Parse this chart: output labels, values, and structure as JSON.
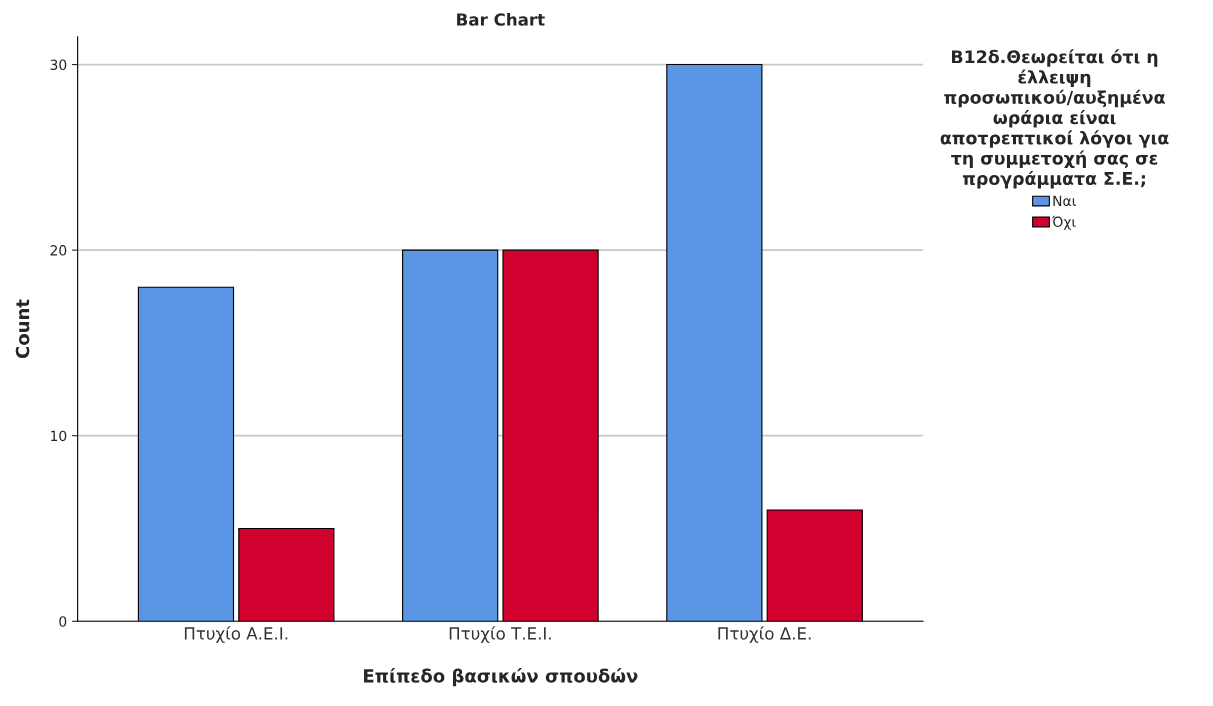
{
  "chart_data": {
    "type": "bar",
    "title": "Bar Chart",
    "xlabel": "Επίπεδο βασικών σπουδών",
    "ylabel": "Count",
    "legend_title": "B12δ.Θεωρείται ότι η\nέλλειψη\nπροσωπικού/αυξημένα\nωράρια είναι\nαποτρεπτικοί λόγοι για\nτη συμμετοχή σας σε\nπρογράμματα Σ.Ε.;",
    "categories": [
      "Πτυχίο Α.Ε.Ι.",
      "Πτυχίο Τ.Ε.Ι.",
      "Πτυχίο Δ.Ε."
    ],
    "series": [
      {
        "name": "Ναι",
        "color": "#5a96e3",
        "values": [
          18,
          20,
          30
        ]
      },
      {
        "name": "Όχι",
        "color": "#d2002e",
        "values": [
          5,
          20,
          6
        ]
      }
    ],
    "ylim": [
      0,
      31.5
    ],
    "yticks": [
      0,
      10,
      20,
      30
    ],
    "grid": "y",
    "legend": "top right"
  }
}
